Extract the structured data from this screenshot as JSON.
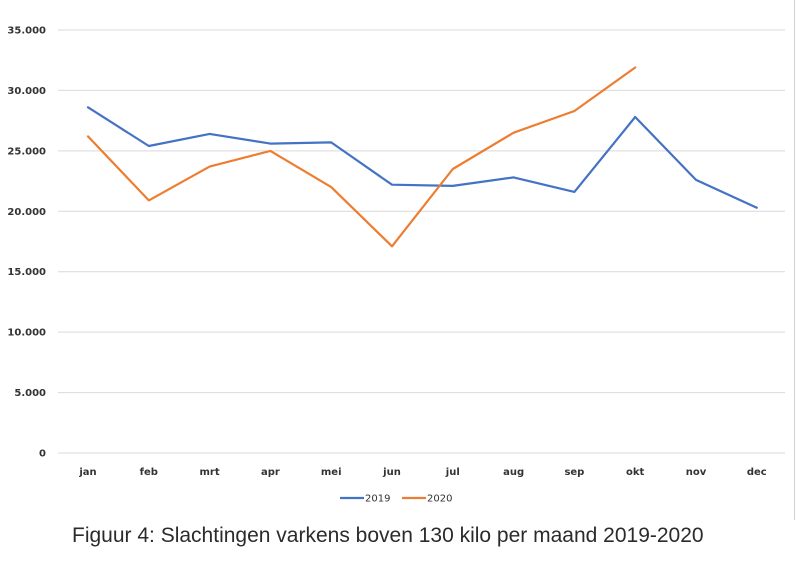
{
  "chart_data": {
    "type": "line",
    "categories": [
      "jan",
      "feb",
      "mrt",
      "apr",
      "mei",
      "jun",
      "jul",
      "aug",
      "sep",
      "okt",
      "nov",
      "dec"
    ],
    "series": [
      {
        "name": "2019",
        "color": "#4472c4",
        "values": [
          28600,
          25400,
          26400,
          25600,
          25700,
          22200,
          22100,
          22800,
          21600,
          27800,
          22600,
          20300
        ]
      },
      {
        "name": "2020",
        "color": "#ed7d31",
        "values": [
          26200,
          20900,
          23700,
          25000,
          22000,
          17100,
          23500,
          26500,
          28300,
          31900,
          null,
          null
        ]
      }
    ],
    "ylim": [
      0,
      35000
    ],
    "yticks": [
      0,
      5000,
      10000,
      15000,
      20000,
      25000,
      30000,
      35000
    ],
    "ytick_labels": [
      "0",
      "5.000",
      "10.000",
      "15.000",
      "20.000",
      "25.000",
      "30.000",
      "35.000"
    ],
    "grid": true,
    "legend_placement": "bottom",
    "gridline_color": "#d9d9d9"
  },
  "caption": "Figuur 4: Slachtingen varkens boven 130 kilo per maand 2019-2020"
}
